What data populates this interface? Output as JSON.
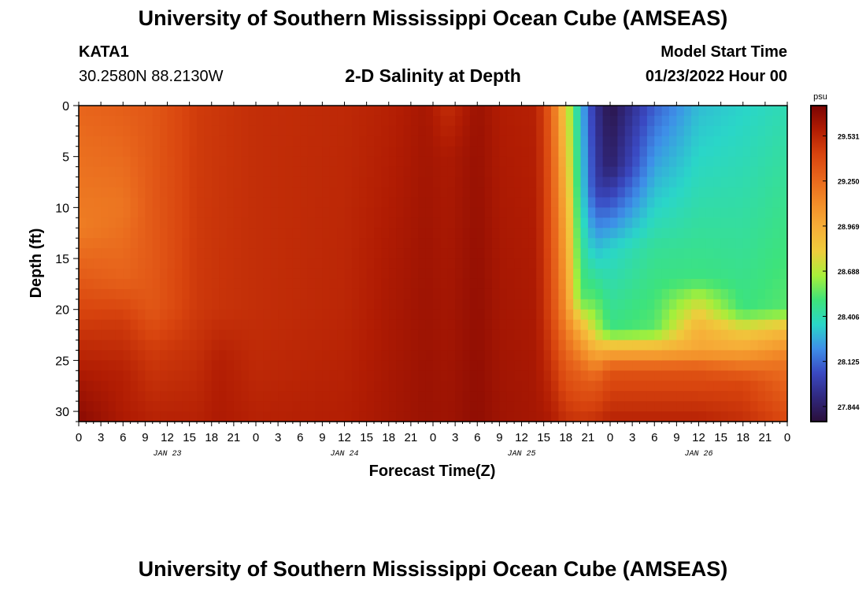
{
  "header": {
    "title": "University of Southern Mississippi Ocean Cube (AMSEAS)",
    "station": "KATA1",
    "coords": "30.2580N  88.2130W",
    "subtitle": "2-D Salinity at Depth",
    "model_start_label": "Model Start Time",
    "model_start_value": "01/23/2022 Hour 00"
  },
  "footer": {
    "title": "University of Southern Mississippi Ocean Cube (AMSEAS)"
  },
  "chart_data": {
    "type": "heatmap",
    "title": "2-D Salinity at Depth",
    "xlabel": "Forecast Time(Z)",
    "ylabel": "Depth (ft)",
    "x_range_hours": [
      0,
      96
    ],
    "x_tick_step_hours": 3,
    "x_tick_labels": [
      "0",
      "3",
      "6",
      "9",
      "12",
      "15",
      "18",
      "21",
      "0",
      "3",
      "6",
      "9",
      "12",
      "15",
      "18",
      "21",
      "0",
      "3",
      "6",
      "9",
      "12",
      "15",
      "18",
      "21",
      "0",
      "3",
      "6",
      "9",
      "12",
      "15",
      "18",
      "21",
      "0"
    ],
    "day_labels": [
      {
        "label": "JAN 23",
        "hour": 12
      },
      {
        "label": "JAN 24",
        "hour": 36
      },
      {
        "label": "JAN 25",
        "hour": 60
      },
      {
        "label": "JAN 26",
        "hour": 84
      }
    ],
    "y_range_ft": [
      0,
      31
    ],
    "y_ticks": [
      0,
      5,
      10,
      15,
      20,
      25,
      30
    ],
    "colorbar": {
      "unit": "psu",
      "min": 27.75,
      "max": 29.72,
      "tick_values": [
        27.844,
        28.125,
        28.406,
        28.688,
        28.969,
        29.25,
        29.531
      ],
      "tick_labels": [
        "27.844",
        "28.125",
        "28.406",
        "28.688",
        "28.969",
        "29.250",
        "29.531"
      ]
    },
    "colormap": [
      "#2a0f3a",
      "#30287e",
      "#3a49c2",
      "#3e8fe8",
      "#2ad6c8",
      "#3ee37a",
      "#a7ef3a",
      "#efcc3c",
      "#f6ae38",
      "#f28c28",
      "#e8661c",
      "#d8440e",
      "#b11c03",
      "#7a0403"
    ],
    "depth_profiles": [
      {
        "hour": 0,
        "values": [
          [
            0,
            29.27
          ],
          [
            12,
            29.17
          ],
          [
            18,
            29.35
          ],
          [
            23,
            29.5
          ],
          [
            28,
            29.62
          ],
          [
            31,
            29.68
          ]
        ]
      },
      {
        "hour": 6,
        "values": [
          [
            0,
            29.3
          ],
          [
            10,
            29.2
          ],
          [
            17,
            29.28
          ],
          [
            21,
            29.45
          ],
          [
            26,
            29.55
          ],
          [
            31,
            29.58
          ]
        ]
      },
      {
        "hour": 10,
        "values": [
          [
            0,
            29.33
          ],
          [
            15,
            29.32
          ],
          [
            20,
            29.33
          ],
          [
            24,
            29.45
          ],
          [
            31,
            29.55
          ]
        ]
      },
      {
        "hour": 16,
        "values": [
          [
            0,
            29.45
          ],
          [
            20,
            29.46
          ],
          [
            25,
            29.5
          ],
          [
            31,
            29.55
          ]
        ]
      },
      {
        "hour": 19,
        "values": [
          [
            0,
            29.47
          ],
          [
            20,
            29.48
          ],
          [
            25,
            29.56
          ],
          [
            31,
            29.58
          ]
        ]
      },
      {
        "hour": 24,
        "values": [
          [
            0,
            29.5
          ],
          [
            20,
            29.5
          ],
          [
            26,
            29.52
          ],
          [
            31,
            29.55
          ]
        ]
      },
      {
        "hour": 36,
        "values": [
          [
            0,
            29.52
          ],
          [
            20,
            29.53
          ],
          [
            31,
            29.56
          ]
        ]
      },
      {
        "hour": 42,
        "values": [
          [
            0,
            29.55
          ],
          [
            15,
            29.58
          ],
          [
            31,
            29.6
          ]
        ]
      },
      {
        "hour": 47,
        "values": [
          [
            0,
            29.6
          ],
          [
            18,
            29.62
          ],
          [
            31,
            29.63
          ]
        ]
      },
      {
        "hour": 50,
        "values": [
          [
            0,
            29.5
          ],
          [
            5,
            29.58
          ],
          [
            31,
            29.62
          ]
        ]
      },
      {
        "hour": 54,
        "values": [
          [
            0,
            29.63
          ],
          [
            31,
            29.66
          ]
        ]
      },
      {
        "hour": 57,
        "values": [
          [
            0,
            29.57
          ],
          [
            31,
            29.62
          ]
        ]
      },
      {
        "hour": 62,
        "values": [
          [
            0,
            29.55
          ],
          [
            31,
            29.6
          ]
        ]
      },
      {
        "hour": 64,
        "values": [
          [
            0,
            29.3
          ],
          [
            20,
            29.4
          ],
          [
            31,
            29.58
          ]
        ]
      },
      {
        "hour": 66,
        "values": [
          [
            0,
            28.8
          ],
          [
            10,
            28.95
          ],
          [
            20,
            29.1
          ],
          [
            25,
            29.3
          ],
          [
            31,
            29.5
          ]
        ]
      },
      {
        "hour": 68,
        "values": [
          [
            0,
            28.3
          ],
          [
            10,
            28.4
          ],
          [
            19,
            28.55
          ],
          [
            22,
            28.95
          ],
          [
            26,
            29.28
          ],
          [
            31,
            29.48
          ]
        ]
      },
      {
        "hour": 70,
        "values": [
          [
            0,
            27.95
          ],
          [
            8,
            28.0
          ],
          [
            14,
            28.3
          ],
          [
            22,
            28.7
          ],
          [
            24,
            28.95
          ],
          [
            27,
            29.3
          ],
          [
            31,
            29.5
          ]
        ]
      },
      {
        "hour": 72,
        "values": [
          [
            0,
            27.78
          ],
          [
            6,
            27.85
          ],
          [
            14,
            28.35
          ],
          [
            22,
            28.5
          ],
          [
            24,
            28.95
          ],
          [
            26,
            29.35
          ],
          [
            31,
            29.55
          ]
        ]
      },
      {
        "hour": 78,
        "values": [
          [
            0,
            28.1
          ],
          [
            14,
            28.45
          ],
          [
            22,
            28.55
          ],
          [
            24,
            28.95
          ],
          [
            26,
            29.35
          ],
          [
            31,
            29.55
          ]
        ]
      },
      {
        "hour": 84,
        "values": [
          [
            0,
            28.3
          ],
          [
            17,
            28.5
          ],
          [
            19,
            28.7
          ],
          [
            22,
            28.95
          ],
          [
            24,
            29.0
          ],
          [
            26,
            29.35
          ],
          [
            31,
            29.55
          ]
        ]
      },
      {
        "hour": 90,
        "values": [
          [
            0,
            28.35
          ],
          [
            20,
            28.5
          ],
          [
            22,
            28.8
          ],
          [
            24,
            29.0
          ],
          [
            27,
            29.4
          ],
          [
            31,
            29.5
          ]
        ]
      },
      {
        "hour": 96,
        "values": [
          [
            0,
            28.4
          ],
          [
            20,
            28.55
          ],
          [
            22,
            28.9
          ],
          [
            25,
            29.2
          ],
          [
            31,
            29.4
          ]
        ]
      }
    ]
  }
}
